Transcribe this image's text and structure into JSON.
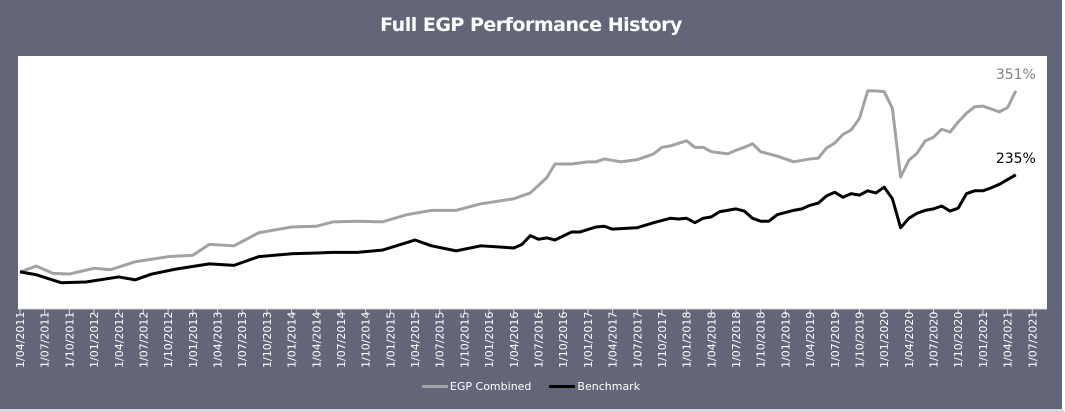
{
  "chart_data": {
    "type": "line",
    "title": "Full EGP Performance History",
    "xlabel": "",
    "ylabel": "",
    "ylim": [
      50,
      400
    ],
    "grid": false,
    "legend_position": "bottom",
    "x_ticks": [
      "1/04/2011",
      "1/07/2011",
      "1/10/2011",
      "1/01/2012",
      "1/04/2012",
      "1/07/2012",
      "1/10/2012",
      "1/01/2013",
      "1/04/2013",
      "1/07/2013",
      "1/10/2013",
      "1/01/2014",
      "1/04/2014",
      "1/07/2014",
      "1/10/2014",
      "1/01/2015",
      "1/04/2015",
      "1/07/2015",
      "1/10/2015",
      "1/01/2016",
      "1/04/2016",
      "1/07/2016",
      "1/10/2016",
      "1/01/2017",
      "1/04/2017",
      "1/07/2017",
      "1/10/2017",
      "1/01/2018",
      "1/04/2018",
      "1/07/2018",
      "1/10/2018",
      "1/01/2019",
      "1/04/2019",
      "1/07/2019",
      "1/10/2019",
      "1/01/2020",
      "1/04/2020",
      "1/07/2020",
      "1/10/2020",
      "1/01/2021",
      "1/04/2021",
      "1/07/2021"
    ],
    "series": [
      {
        "name": "EGP Combined",
        "color": "#a0a2a6",
        "end_label": "351%",
        "points": [
          [
            "2011-04",
            101
          ],
          [
            "2011-06",
            109
          ],
          [
            "2011-08",
            99
          ],
          [
            "2011-10",
            98
          ],
          [
            "2012-01",
            106
          ],
          [
            "2012-03",
            104
          ],
          [
            "2012-06",
            115
          ],
          [
            "2012-10",
            122
          ],
          [
            "2013-01",
            124
          ],
          [
            "2013-03",
            139
          ],
          [
            "2013-06",
            137
          ],
          [
            "2013-09",
            155
          ],
          [
            "2014-01",
            163
          ],
          [
            "2014-04",
            164
          ],
          [
            "2014-06",
            170
          ],
          [
            "2014-09",
            171
          ],
          [
            "2014-12",
            170
          ],
          [
            "2015-03",
            180
          ],
          [
            "2015-06",
            186
          ],
          [
            "2015-09",
            186
          ],
          [
            "2015-12",
            195
          ],
          [
            "2016-04",
            202
          ],
          [
            "2016-06",
            210
          ],
          [
            "2016-08",
            231
          ],
          [
            "2016-09",
            250
          ],
          [
            "2016-11",
            250
          ],
          [
            "2017-01",
            253
          ],
          [
            "2017-02",
            253
          ],
          [
            "2017-03",
            257
          ],
          [
            "2017-05",
            253
          ],
          [
            "2017-07",
            256
          ],
          [
            "2017-09",
            264
          ],
          [
            "2017-10",
            273
          ],
          [
            "2017-11",
            275
          ],
          [
            "2018-01",
            282
          ],
          [
            "2018-02",
            273
          ],
          [
            "2018-03",
            273
          ],
          [
            "2018-04",
            267
          ],
          [
            "2018-06",
            264
          ],
          [
            "2018-07",
            269
          ],
          [
            "2018-08",
            273
          ],
          [
            "2018-09",
            278
          ],
          [
            "2018-10",
            267
          ],
          [
            "2018-12",
            261
          ],
          [
            "2019-02",
            253
          ],
          [
            "2019-04",
            257
          ],
          [
            "2019-05",
            258
          ],
          [
            "2019-06",
            272
          ],
          [
            "2019-07",
            279
          ],
          [
            "2019-08",
            291
          ],
          [
            "2019-09",
            297
          ],
          [
            "2019-10",
            313
          ],
          [
            "2019-11",
            351
          ],
          [
            "2019-12",
            351
          ],
          [
            "2020-01",
            350
          ],
          [
            "2020-02",
            327
          ],
          [
            "2020-03",
            232
          ],
          [
            "2020-04",
            255
          ],
          [
            "2020-05",
            265
          ],
          [
            "2020-06",
            282
          ],
          [
            "2020-07",
            287
          ],
          [
            "2020-08",
            298
          ],
          [
            "2020-09",
            294
          ],
          [
            "2020-10",
            308
          ],
          [
            "2020-11",
            320
          ],
          [
            "2020-12",
            329
          ],
          [
            "2021-01",
            330
          ],
          [
            "2021-03",
            322
          ],
          [
            "2021-04",
            328
          ],
          [
            "2021-05",
            351
          ]
        ]
      },
      {
        "name": "Benchmark",
        "color": "#000000",
        "end_label": "235%",
        "points": [
          [
            "2011-04",
            101
          ],
          [
            "2011-06",
            97
          ],
          [
            "2011-09",
            86
          ],
          [
            "2011-12",
            87
          ],
          [
            "2012-04",
            94
          ],
          [
            "2012-06",
            90
          ],
          [
            "2012-08",
            98
          ],
          [
            "2012-11",
            105
          ],
          [
            "2013-03",
            112
          ],
          [
            "2013-06",
            110
          ],
          [
            "2013-09",
            122
          ],
          [
            "2014-01",
            126
          ],
          [
            "2014-04",
            127
          ],
          [
            "2014-06",
            128
          ],
          [
            "2014-09",
            128
          ],
          [
            "2014-12",
            131
          ],
          [
            "2015-04",
            145
          ],
          [
            "2015-06",
            137
          ],
          [
            "2015-09",
            130
          ],
          [
            "2015-12",
            137
          ],
          [
            "2016-04",
            134
          ],
          [
            "2016-05",
            139
          ],
          [
            "2016-06",
            151
          ],
          [
            "2016-07",
            146
          ],
          [
            "2016-08",
            148
          ],
          [
            "2016-09",
            145
          ],
          [
            "2016-11",
            156
          ],
          [
            "2016-12",
            156
          ],
          [
            "2017-02",
            163
          ],
          [
            "2017-03",
            164
          ],
          [
            "2017-04",
            160
          ],
          [
            "2017-07",
            162
          ],
          [
            "2017-09",
            169
          ],
          [
            "2017-11",
            175
          ],
          [
            "2017-12",
            174
          ],
          [
            "2018-01",
            175
          ],
          [
            "2018-02",
            169
          ],
          [
            "2018-03",
            175
          ],
          [
            "2018-04",
            177
          ],
          [
            "2018-05",
            184
          ],
          [
            "2018-07",
            188
          ],
          [
            "2018-08",
            185
          ],
          [
            "2018-09",
            175
          ],
          [
            "2018-10",
            171
          ],
          [
            "2018-11",
            171
          ],
          [
            "2018-12",
            180
          ],
          [
            "2019-02",
            186
          ],
          [
            "2019-03",
            188
          ],
          [
            "2019-04",
            193
          ],
          [
            "2019-05",
            196
          ],
          [
            "2019-06",
            206
          ],
          [
            "2019-07",
            211
          ],
          [
            "2019-08",
            204
          ],
          [
            "2019-09",
            209
          ],
          [
            "2019-10",
            207
          ],
          [
            "2019-11",
            213
          ],
          [
            "2019-12",
            210
          ],
          [
            "2020-01",
            218
          ],
          [
            "2020-02",
            202
          ],
          [
            "2020-03",
            162
          ],
          [
            "2020-04",
            175
          ],
          [
            "2020-05",
            182
          ],
          [
            "2020-06",
            186
          ],
          [
            "2020-07",
            188
          ],
          [
            "2020-08",
            192
          ],
          [
            "2020-09",
            185
          ],
          [
            "2020-10",
            189
          ],
          [
            "2020-11",
            209
          ],
          [
            "2020-12",
            213
          ],
          [
            "2021-01",
            213
          ],
          [
            "2021-02",
            217
          ],
          [
            "2021-03",
            222
          ],
          [
            "2021-05",
            235
          ]
        ]
      }
    ]
  }
}
